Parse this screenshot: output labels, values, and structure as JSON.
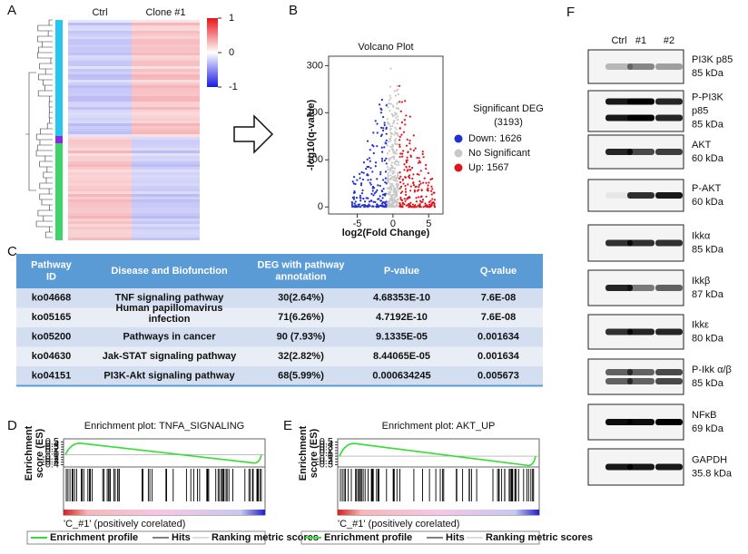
{
  "panel_labels": [
    "A",
    "B",
    "C",
    "D",
    "E",
    "F"
  ],
  "heatmap": {
    "columns": [
      "Ctrl",
      "Clone #1"
    ],
    "colorbar_ticks": [
      1,
      0,
      -1
    ]
  },
  "volcano": {
    "title": "Volcano Plot",
    "xlabel": "log2(Fold Change)",
    "ylabel": "-log10(q-value)",
    "xlim": [
      -9,
      7
    ],
    "ylim": [
      -15,
      320
    ],
    "xticks": [
      -5,
      0,
      5
    ],
    "yticks": [
      0,
      100,
      200,
      300
    ],
    "legend_title": [
      "Significant DEG",
      "(3193)"
    ],
    "legend": [
      {
        "label": "Down: 1626",
        "color": "#1f2fd0"
      },
      {
        "label": "No Significant",
        "color": "#c8c8c8"
      },
      {
        "label": "Up: 1567",
        "color": "#e0141e"
      }
    ]
  },
  "table": {
    "header": [
      [
        "Pathway",
        "ID"
      ],
      [
        "Disease and Biofunction"
      ],
      [
        "DEG with pathway",
        "annotation"
      ],
      [
        "P-value"
      ],
      [
        "Q-value"
      ]
    ],
    "rows": [
      [
        [
          "ko04668"
        ],
        [
          "TNF signaling pathway"
        ],
        [
          "30(2.64%)"
        ],
        [
          "4.68353E-10"
        ],
        [
          "7.6E-08"
        ]
      ],
      [
        [
          "ko05165"
        ],
        [
          "Human papillomavirus",
          "infection"
        ],
        [
          "71(6.26%)"
        ],
        [
          "4.7192E-10"
        ],
        [
          "7.6E-08"
        ]
      ],
      [
        [
          "ko05200"
        ],
        [
          "Pathways in cancer"
        ],
        [
          "90 (7.93%)"
        ],
        [
          "9.1335E-05"
        ],
        [
          "0.001634"
        ]
      ],
      [
        [
          "ko04630"
        ],
        [
          "Jak-STAT signaling pathway"
        ],
        [
          "32(2.82%)"
        ],
        [
          "8.44065E-05"
        ],
        [
          "0.001634"
        ]
      ],
      [
        [
          "ko04151"
        ],
        [
          "PI3K-Akt signaling pathway"
        ],
        [
          "68(5.99%)"
        ],
        [
          "0.000634245"
        ],
        [
          "0.005673"
        ]
      ]
    ]
  },
  "gsea": [
    {
      "title": "Enrichment plot: TNFA_SIGNALING",
      "ylabel": [
        "Enrichment",
        "score (ES)"
      ],
      "ylim": [
        -0.45,
        0.55
      ],
      "yticks": [
        0.5,
        0.4,
        0.3,
        0.2,
        0.1,
        0,
        -0.1,
        -0.2,
        -0.3,
        -0.4
      ],
      "caption": "'C_#1' (positively corelated)",
      "legend": [
        "Enrichment profile",
        "Hits",
        "Ranking metric scores"
      ]
    },
    {
      "title": "Enrichment plot: AKT_UP",
      "ylabel": [
        "Enrichment",
        "score (ES)"
      ],
      "ylim": [
        -0.35,
        0.55
      ],
      "yticks": [
        0.5,
        0.4,
        0.3,
        0.2,
        0.1,
        0,
        -0.1,
        -0.2,
        -0.3
      ],
      "caption": "'C_#1' (positively corelated)",
      "legend": [
        "Enrichment profile",
        "Hits",
        "Ranking metric scores"
      ]
    }
  ],
  "blot": {
    "lanes": [
      "Ctrl",
      "#1",
      "#2"
    ],
    "proteins": [
      [
        "PI3K p85",
        "85 kDa"
      ],
      [
        "P-PI3K",
        "p85",
        "85 kDa"
      ],
      [
        "AKT",
        "60 kDa"
      ],
      [
        "P-AKT",
        "60  kDa"
      ],
      [
        "Ikkα",
        "85 kDa"
      ],
      [
        "Ikkβ",
        "87 kDa"
      ],
      [
        "Ikkε",
        "80 kDa"
      ],
      [
        "P-Ikk α/β",
        "85 kDa"
      ],
      [
        "NFκB",
        "69 kDa"
      ],
      [
        "GAPDH",
        "35.8  kDa"
      ]
    ]
  }
}
